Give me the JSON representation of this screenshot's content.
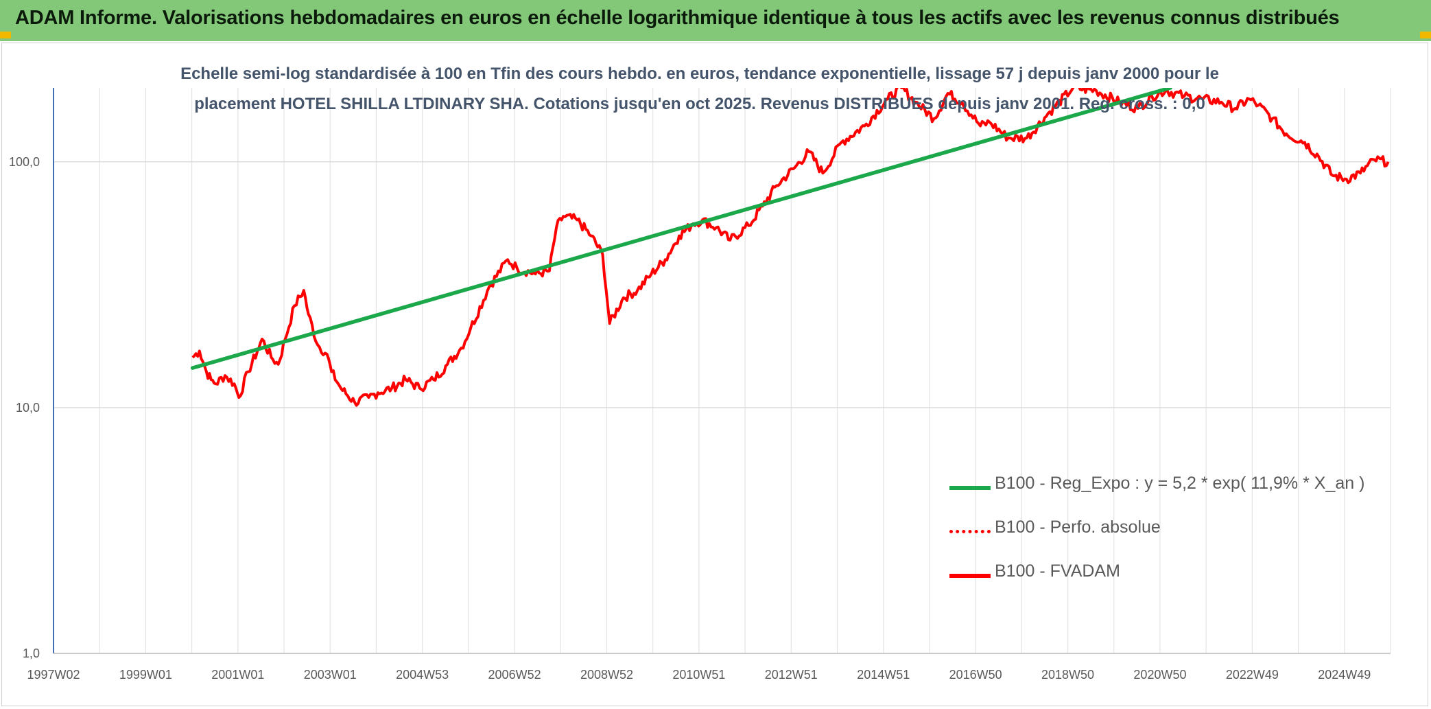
{
  "banner": {
    "title": "ADAM Informe. Valorisations hebdomadaires en euros en échelle logarithmique identique à tous les actifs avec les revenus connus distribués",
    "color": "#82c878"
  },
  "chart_data": {
    "type": "line",
    "subtitle_line1": "Echelle semi-log standardisée à 100 en Tfin des cours hebdo. en euros, tendance exponentielle, lissage 57 j depuis janv 2000 pour le",
    "subtitle_line2": "placement HOTEL SHILLA LTDINARY SHA. Cotations jusqu'en oct 2025. Revenus DISTRIBUES depuis janv 2001. Reg. cross. : 0,0",
    "y_scale": "log",
    "ylim": [
      1,
      200
    ],
    "xlim": [
      1997.0,
      2025.85
    ],
    "y_ticks": [
      1,
      10,
      100
    ],
    "y_tick_labels": [
      "1,0",
      "10,0",
      "100,0"
    ],
    "x_tick_labels": [
      "1997W02",
      "1999W01",
      "2001W01",
      "2003W01",
      "2004W53",
      "2006W52",
      "2008W52",
      "2010W51",
      "2012W51",
      "2014W51",
      "2016W50",
      "2018W50",
      "2020W50",
      "2022W49",
      "2024W49"
    ],
    "grid": true,
    "legend_position": "lower-right",
    "series": [
      {
        "name": "B100 - Reg_Expo : y = 5,2 * exp( 11,9% *  X_an )",
        "color": "#1aa84a",
        "style": "solid",
        "x": [
          2000.0,
          2021.1
        ],
        "y": [
          14.5,
          200
        ]
      },
      {
        "name": "B100 - Perfo. absolue",
        "color": "#ff0000",
        "style": "dotted",
        "x": [],
        "y": []
      },
      {
        "name": "B100 - FVADAM",
        "color": "#ff0000",
        "style": "solid",
        "x": [
          2000.0,
          2000.15,
          2000.3,
          2000.4,
          2000.5,
          2000.7,
          2000.9,
          2001.0,
          2001.2,
          2001.4,
          2001.5,
          2001.7,
          2001.85,
          2002.0,
          2002.2,
          2002.4,
          2002.5,
          2002.7,
          2002.9,
          2003.0,
          2003.2,
          2003.5,
          2003.8,
          2004.0,
          2004.3,
          2004.6,
          2004.9,
          2005.2,
          2005.5,
          2005.8,
          2006.0,
          2006.4,
          2006.8,
          2007.0,
          2007.4,
          2007.7,
          2007.85,
          2008.0,
          2008.3,
          2008.6,
          2008.85,
          2009.0,
          2009.3,
          2009.6,
          2009.9,
          2010.2,
          2010.5,
          2010.8,
          2011.0,
          2011.3,
          2011.6,
          2012.0,
          2012.3,
          2012.6,
          2013.0,
          2013.3,
          2013.6,
          2014.0,
          2014.5,
          2015.0,
          2015.3,
          2015.6,
          2016.0,
          2016.3,
          2016.6,
          2017.0,
          2017.2,
          2017.6,
          2018.0,
          2018.5,
          2019.0,
          2019.5,
          2020.0,
          2020.4,
          2020.7,
          2021.0,
          2021.4,
          2021.8,
          2022.2,
          2022.5,
          2022.8,
          2023.0,
          2023.3,
          2023.6,
          2024.0,
          2024.3,
          2024.6,
          2024.9,
          2025.2,
          2025.5,
          2025.8
        ],
        "y": [
          16,
          17,
          14,
          13,
          12.5,
          13.5,
          12.5,
          11,
          14,
          17,
          19,
          16,
          15,
          19,
          26,
          30,
          24,
          18,
          16.5,
          14,
          12,
          10.5,
          11,
          11.5,
          12,
          13,
          12,
          13,
          15,
          17.5,
          21,
          31,
          40,
          37,
          35,
          36,
          54,
          60,
          58,
          50,
          42,
          22,
          28,
          30,
          35,
          40,
          50,
          56,
          58,
          54,
          48,
          55,
          66,
          80,
          95,
          110,
          90,
          120,
          140,
          180,
          200,
          175,
          150,
          190,
          175,
          140,
          145,
          125,
          125,
          160,
          200,
          195,
          175,
          165,
          185,
          195,
          185,
          180,
          175,
          165,
          180,
          170,
          150,
          130,
          120,
          105,
          88,
          85,
          90,
          102,
          100
        ]
      }
    ]
  }
}
